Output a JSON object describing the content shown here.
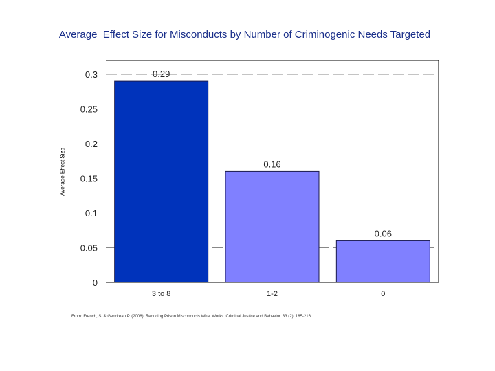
{
  "chart_data": {
    "type": "bar",
    "title": "Average  Effect Size for Misconducts by Number of Criminogenic Needs Targeted",
    "xlabel": "",
    "ylabel": "Average Effect Size",
    "categories": [
      "3 to 8",
      "1-2",
      "0"
    ],
    "values": [
      0.29,
      0.16,
      0.06
    ],
    "data_labels": [
      "0.29",
      "0.16",
      "0.06"
    ],
    "ylim": [
      0,
      0.32
    ],
    "yticks": [
      0,
      0.05,
      0.1,
      0.15,
      0.2,
      0.25,
      0.3
    ],
    "ytick_labels": [
      "0",
      "0.05",
      "0.1",
      "0.15",
      "0.2",
      "0.25",
      "0.3"
    ],
    "dashed_gridlines_at": [
      0.3,
      0.05
    ],
    "bar_colors": [
      "#0033bb",
      "#8080ff",
      "#8080ff"
    ],
    "legend": "none"
  },
  "footnote": "From: French, S. & Gendreau P. (2006). Reducing Prison Misconducts What Works. Criminal Justice and Behavior. 33 (2): 185-216."
}
